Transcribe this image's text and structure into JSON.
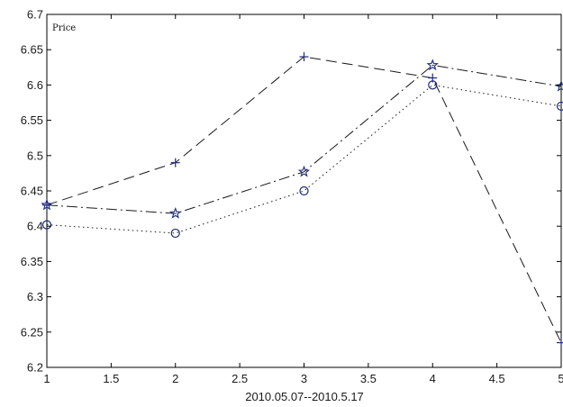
{
  "chart_data": {
    "type": "line",
    "title": "",
    "xlabel": "2010.05.07--2010.5.17",
    "ylabel": "",
    "inner_label": "Price",
    "xlim": [
      1,
      5
    ],
    "ylim": [
      6.2,
      6.7
    ],
    "xticks": [
      "1",
      "1.5",
      "2",
      "2.5",
      "3",
      "3.5",
      "4",
      "4.5",
      "5"
    ],
    "yticks": [
      "6.2",
      "6.25",
      "6.3",
      "6.35",
      "6.4",
      "6.45",
      "6.5",
      "6.55",
      "6.6",
      "6.65",
      "6.7"
    ],
    "grid": false,
    "legend": "none",
    "x": [
      1,
      2,
      3,
      4,
      5
    ],
    "series": [
      {
        "values": [
          6.43,
          6.49,
          6.64,
          6.61,
          6.235
        ],
        "line_style": "dashed",
        "marker": "plus",
        "color": "#1a1a1a"
      },
      {
        "values": [
          6.43,
          6.418,
          6.477,
          6.628,
          6.598
        ],
        "line_style": "dash-dot",
        "marker": "star",
        "color": "#1a1a1a"
      },
      {
        "values": [
          6.402,
          6.39,
          6.45,
          6.6,
          6.57
        ],
        "line_style": "dotted",
        "marker": "circle",
        "color": "#1a1a1a"
      }
    ],
    "marker_color": "#1f2a7a"
  }
}
